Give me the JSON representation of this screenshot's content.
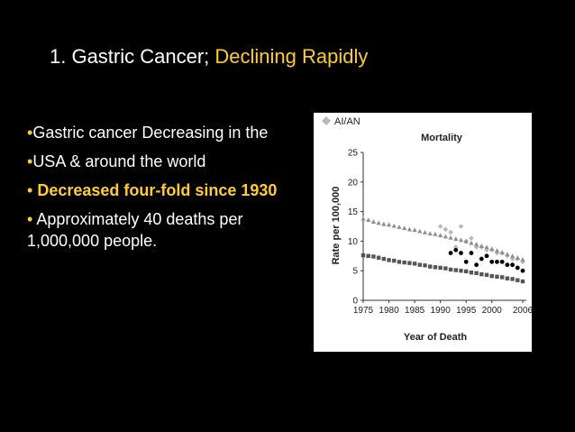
{
  "slide": {
    "title_plain": "1. Gastric Cancer; ",
    "title_highlight": "Declining Rapidly"
  },
  "bullets": {
    "b1_dot": "•",
    "b1_text": "Gastric cancer Decreasing in the",
    "b2_dot": "•",
    "b2_text": "USA & around the world",
    "b3_dot": "•",
    "b3_text": " Decreased four-fold since 1930",
    "b4_dot": "•",
    "b4_text": " Approximately 40 deaths per 1,000,000 people."
  },
  "chart_data": {
    "type": "scatter",
    "legend": "AI/AN",
    "title": "Mortality",
    "xlabel": "Year of Death",
    "ylabel": "Rate per 100,000",
    "xlim": [
      1975,
      2006
    ],
    "ylim": [
      0,
      25
    ],
    "xticks": [
      1975,
      1980,
      1985,
      1990,
      1995,
      2000,
      2006
    ],
    "yticks": [
      0,
      5,
      10,
      15,
      20,
      25
    ],
    "series": [
      {
        "name": "AI/AN",
        "color": "#b7b7c4",
        "marker": "diamond",
        "x": [
          1990,
          1991,
          1992,
          1993,
          1994,
          1995,
          1996,
          1997,
          1998,
          1999,
          2000,
          2001,
          2002,
          2003,
          2004,
          2005,
          2006
        ],
        "y": [
          12.5,
          12.0,
          11.5,
          9.0,
          12.5,
          10.0,
          10.5,
          9.0,
          9.0,
          8.5,
          8.5,
          8.0,
          8.0,
          7.5,
          7.0,
          7.0,
          6.5
        ]
      },
      {
        "color": "#8e8e8e",
        "marker": "triangle",
        "x": [
          1975,
          1976,
          1977,
          1978,
          1979,
          1980,
          1981,
          1982,
          1983,
          1984,
          1985,
          1986,
          1987,
          1988,
          1989,
          1990,
          1991,
          1992,
          1993,
          1994,
          1995,
          1996,
          1997,
          1998,
          1999,
          2000,
          2001,
          2002,
          2003,
          2004,
          2005,
          2006
        ],
        "y": [
          13.8,
          13.6,
          13.3,
          13.1,
          12.9,
          12.8,
          12.6,
          12.4,
          12.2,
          12.0,
          11.9,
          11.7,
          11.5,
          11.3,
          11.2,
          11.0,
          10.8,
          10.6,
          10.4,
          10.2,
          10.0,
          9.7,
          9.5,
          9.2,
          9.0,
          8.7,
          8.4,
          8.1,
          7.8,
          7.5,
          7.2,
          6.9
        ]
      },
      {
        "color": "#000000",
        "marker": "circle",
        "x": [
          1992,
          1993,
          1994,
          1995,
          1996,
          1997,
          1998,
          1999,
          2000,
          2001,
          2002,
          2003,
          2004,
          2005,
          2006
        ],
        "y": [
          8.0,
          8.5,
          8.0,
          6.5,
          8.0,
          6.0,
          7.0,
          7.5,
          6.5,
          6.5,
          6.5,
          6.0,
          6.0,
          5.5,
          5.0
        ]
      },
      {
        "color": "#555555",
        "marker": "square",
        "x": [
          1975,
          1976,
          1977,
          1978,
          1979,
          1980,
          1981,
          1982,
          1983,
          1984,
          1985,
          1986,
          1987,
          1988,
          1989,
          1990,
          1991,
          1992,
          1993,
          1994,
          1995,
          1996,
          1997,
          1998,
          1999,
          2000,
          2001,
          2002,
          2003,
          2004,
          2005,
          2006
        ],
        "y": [
          7.6,
          7.5,
          7.4,
          7.2,
          7.0,
          6.8,
          6.7,
          6.5,
          6.4,
          6.3,
          6.2,
          6.0,
          5.9,
          5.7,
          5.6,
          5.5,
          5.4,
          5.2,
          5.1,
          5.0,
          4.9,
          4.7,
          4.6,
          4.4,
          4.3,
          4.1,
          4.0,
          3.9,
          3.7,
          3.6,
          3.4,
          3.2
        ]
      }
    ]
  }
}
